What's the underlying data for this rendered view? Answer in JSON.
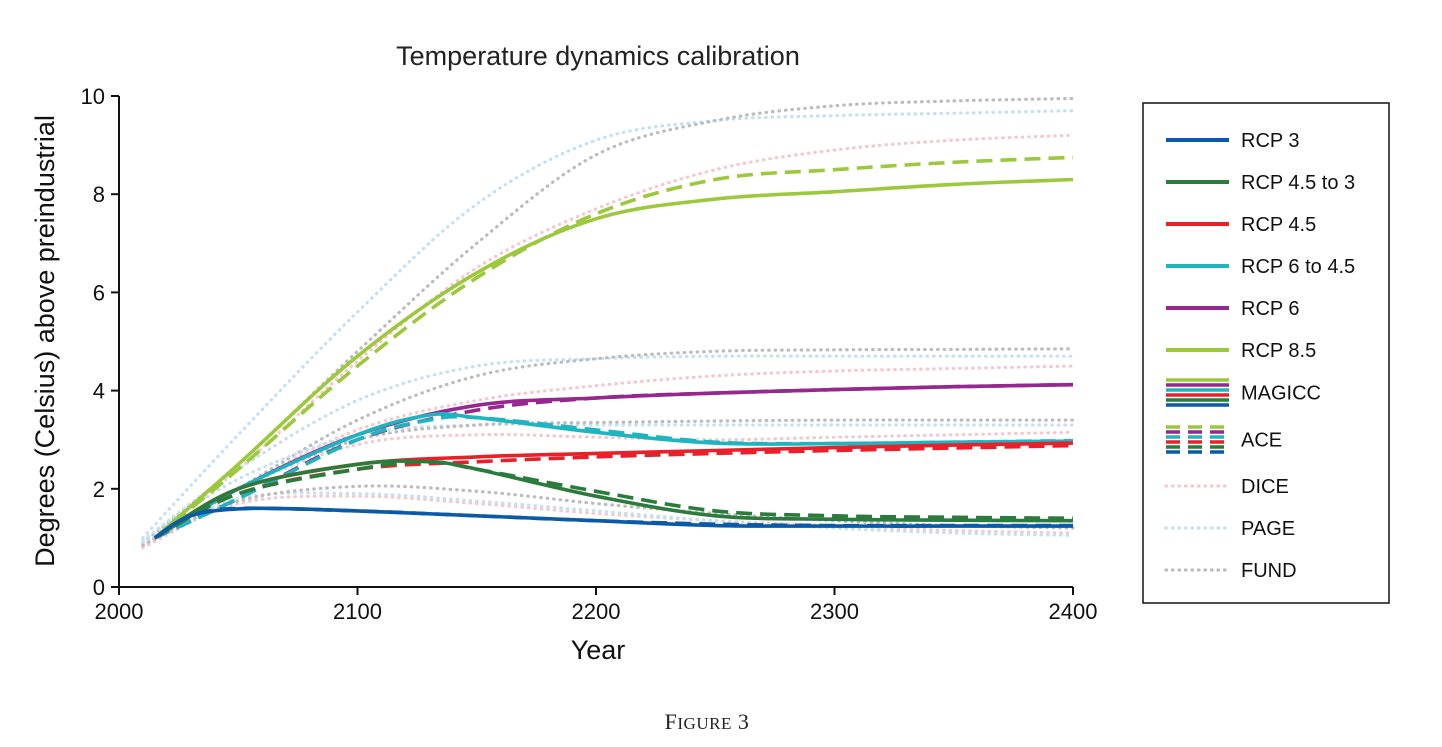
{
  "chart_data": {
    "type": "line",
    "title": "Temperature dynamics calibration",
    "xlabel": "Year",
    "ylabel": "Degrees (Celsius) above preindustrial",
    "xlim": [
      2000,
      2400
    ],
    "ylim": [
      0,
      10
    ],
    "xticks": [
      "2000",
      "2100",
      "2200",
      "2300",
      "2400"
    ],
    "yticks": [
      "0",
      "2",
      "4",
      "6",
      "8",
      "10"
    ],
    "grid": false,
    "legend_position": "right",
    "caption": "Figure 3",
    "colors": {
      "RCP 3": "#0a5aa8",
      "RCP 4.5 to 3": "#2a7b3c",
      "RCP 4.5": "#e8202a",
      "RCP 6 to 4.5": "#1fb5c0",
      "RCP 6": "#96278e",
      "RCP 8.5": "#9cc83c",
      "DICE": "#f5c8d0",
      "PAGE": "#c6e0f2",
      "FUND": "#bcbcbc"
    },
    "legend": [
      {
        "label": "RCP 3",
        "style": "solid"
      },
      {
        "label": "RCP 4.5 to 3",
        "style": "solid"
      },
      {
        "label": "RCP 4.5",
        "style": "solid"
      },
      {
        "label": "RCP 6 to 4.5",
        "style": "solid"
      },
      {
        "label": "RCP 6",
        "style": "solid"
      },
      {
        "label": "RCP 8.5",
        "style": "solid"
      },
      {
        "label": "MAGICC",
        "style": "solid-stack"
      },
      {
        "label": "ACE",
        "style": "dashed-stack"
      },
      {
        "label": "DICE",
        "style": "dotted"
      },
      {
        "label": "PAGE",
        "style": "dotted"
      },
      {
        "label": "FUND",
        "style": "dotted"
      }
    ],
    "series": [
      {
        "scenario": "RCP 8.5",
        "model": "DICE",
        "style": "dotted",
        "x": [
          2010,
          2050,
          2100,
          2150,
          2200,
          2250,
          2300,
          2350,
          2400
        ],
        "y": [
          0.9,
          2.4,
          4.6,
          6.5,
          7.7,
          8.5,
          8.9,
          9.1,
          9.2
        ]
      },
      {
        "scenario": "RCP 8.5",
        "model": "PAGE",
        "style": "dotted",
        "x": [
          2010,
          2050,
          2100,
          2150,
          2200,
          2250,
          2300,
          2350,
          2400
        ],
        "y": [
          1.0,
          3.1,
          5.6,
          7.8,
          9.1,
          9.5,
          9.6,
          9.65,
          9.7
        ]
      },
      {
        "scenario": "RCP 8.5",
        "model": "FUND",
        "style": "dotted",
        "x": [
          2010,
          2050,
          2100,
          2150,
          2200,
          2250,
          2300,
          2350,
          2400
        ],
        "y": [
          0.9,
          2.5,
          4.8,
          7.0,
          8.8,
          9.5,
          9.8,
          9.9,
          9.95
        ]
      },
      {
        "scenario": "RCP 6",
        "model": "DICE",
        "style": "dotted",
        "x": [
          2010,
          2050,
          2100,
          2150,
          2200,
          2250,
          2300,
          2350,
          2400
        ],
        "y": [
          0.85,
          2.0,
          3.2,
          3.8,
          4.1,
          4.3,
          4.4,
          4.45,
          4.5
        ]
      },
      {
        "scenario": "RCP 6",
        "model": "PAGE",
        "style": "dotted",
        "x": [
          2010,
          2050,
          2100,
          2150,
          2200,
          2250,
          2300,
          2350,
          2400
        ],
        "y": [
          0.95,
          2.4,
          3.8,
          4.5,
          4.65,
          4.7,
          4.7,
          4.7,
          4.7
        ]
      },
      {
        "scenario": "RCP 6",
        "model": "FUND",
        "style": "dotted",
        "x": [
          2010,
          2050,
          2100,
          2150,
          2200,
          2250,
          2300,
          2350,
          2400
        ],
        "y": [
          0.85,
          2.0,
          3.4,
          4.3,
          4.65,
          4.8,
          4.83,
          4.84,
          4.85
        ]
      },
      {
        "scenario": "RCP 6 to 4.5",
        "model": "DICE",
        "style": "dotted",
        "x": [
          2010,
          2050,
          2100,
          2150,
          2200,
          2250,
          2300,
          2350,
          2400
        ],
        "y": [
          0.85,
          2.0,
          2.9,
          3.1,
          3.05,
          3.0,
          3.05,
          3.1,
          3.15
        ]
      },
      {
        "scenario": "RCP 6 to 4.5",
        "model": "PAGE",
        "style": "dotted",
        "x": [
          2010,
          2050,
          2100,
          2150,
          2200,
          2250,
          2300,
          2350,
          2400
        ],
        "y": [
          0.95,
          2.2,
          3.1,
          3.3,
          3.3,
          3.3,
          3.3,
          3.3,
          3.3
        ]
      },
      {
        "scenario": "RCP 6 to 4.5",
        "model": "FUND",
        "style": "dotted",
        "x": [
          2010,
          2050,
          2100,
          2150,
          2200,
          2250,
          2300,
          2350,
          2400
        ],
        "y": [
          0.85,
          2.0,
          3.0,
          3.3,
          3.35,
          3.38,
          3.4,
          3.4,
          3.4
        ]
      },
      {
        "scenario": "RCP 3",
        "model": "DICE",
        "style": "dotted",
        "x": [
          2010,
          2050,
          2100,
          2150,
          2200,
          2250,
          2300,
          2350,
          2400
        ],
        "y": [
          0.8,
          1.7,
          1.85,
          1.7,
          1.5,
          1.35,
          1.25,
          1.15,
          1.1
        ]
      },
      {
        "scenario": "RCP 3",
        "model": "PAGE",
        "style": "dotted",
        "x": [
          2010,
          2050,
          2100,
          2150,
          2200,
          2250,
          2300,
          2350,
          2400
        ],
        "y": [
          0.9,
          1.8,
          1.9,
          1.75,
          1.55,
          1.35,
          1.2,
          1.1,
          1.05
        ]
      },
      {
        "scenario": "RCP 3",
        "model": "FUND",
        "style": "dotted",
        "x": [
          2010,
          2050,
          2100,
          2150,
          2200,
          2250,
          2300,
          2350,
          2400
        ],
        "y": [
          0.85,
          1.75,
          2.05,
          1.95,
          1.7,
          1.5,
          1.35,
          1.25,
          1.2
        ]
      },
      {
        "scenario": "RCP 8.5",
        "model": "ACE",
        "style": "dashed",
        "x": [
          2015,
          2050,
          2100,
          2150,
          2200,
          2250,
          2300,
          2350,
          2400
        ],
        "y": [
          1.0,
          2.4,
          4.5,
          6.3,
          7.6,
          8.3,
          8.5,
          8.65,
          8.75
        ]
      },
      {
        "scenario": "RCP 8.5",
        "model": "MAGICC",
        "style": "solid",
        "x": [
          2015,
          2050,
          2100,
          2150,
          2200,
          2250,
          2300,
          2350,
          2400
        ],
        "y": [
          1.0,
          2.5,
          4.7,
          6.4,
          7.5,
          7.9,
          8.05,
          8.2,
          8.3
        ]
      },
      {
        "scenario": "RCP 6",
        "model": "ACE",
        "style": "dashed",
        "x": [
          2015,
          2050,
          2100,
          2150,
          2200,
          2250,
          2300,
          2350,
          2400
        ],
        "y": [
          1.0,
          1.8,
          3.0,
          3.6,
          3.85,
          3.95,
          4.02,
          4.08,
          4.12
        ]
      },
      {
        "scenario": "RCP 6",
        "model": "MAGICC",
        "style": "solid",
        "x": [
          2015,
          2050,
          2100,
          2150,
          2200,
          2250,
          2300,
          2350,
          2400
        ],
        "y": [
          1.0,
          2.0,
          3.1,
          3.7,
          3.85,
          3.95,
          4.02,
          4.08,
          4.12
        ]
      },
      {
        "scenario": "RCP 6 to 4.5",
        "model": "ACE",
        "style": "dashed",
        "x": [
          2015,
          2050,
          2100,
          2130,
          2150,
          2200,
          2250,
          2300,
          2350,
          2400
        ],
        "y": [
          1.0,
          1.8,
          3.0,
          3.4,
          3.45,
          3.2,
          2.95,
          2.92,
          2.95,
          2.98
        ]
      },
      {
        "scenario": "RCP 6 to 4.5",
        "model": "MAGICC",
        "style": "solid",
        "x": [
          2015,
          2050,
          2100,
          2130,
          2150,
          2200,
          2250,
          2300,
          2350,
          2400
        ],
        "y": [
          1.0,
          2.0,
          3.1,
          3.5,
          3.45,
          3.15,
          2.93,
          2.92,
          2.95,
          2.97
        ]
      },
      {
        "scenario": "RCP 4.5",
        "model": "ACE",
        "style": "dashed",
        "x": [
          2015,
          2050,
          2100,
          2150,
          2200,
          2250,
          2300,
          2350,
          2400
        ],
        "y": [
          1.0,
          1.9,
          2.4,
          2.55,
          2.65,
          2.72,
          2.78,
          2.83,
          2.88
        ]
      },
      {
        "scenario": "RCP 4.5",
        "model": "MAGICC",
        "style": "solid",
        "x": [
          2015,
          2050,
          2100,
          2150,
          2200,
          2250,
          2300,
          2350,
          2400
        ],
        "y": [
          1.0,
          2.0,
          2.5,
          2.65,
          2.72,
          2.78,
          2.84,
          2.89,
          2.93
        ]
      },
      {
        "scenario": "RCP 4.5 to 3",
        "model": "ACE",
        "style": "dashed",
        "x": [
          2015,
          2050,
          2100,
          2130,
          2150,
          2200,
          2250,
          2300,
          2350,
          2400
        ],
        "y": [
          1.0,
          1.9,
          2.4,
          2.55,
          2.4,
          1.95,
          1.55,
          1.45,
          1.42,
          1.4
        ]
      },
      {
        "scenario": "RCP 4.5 to 3",
        "model": "MAGICC",
        "style": "solid",
        "x": [
          2015,
          2050,
          2100,
          2130,
          2150,
          2200,
          2250,
          2300,
          2350,
          2400
        ],
        "y": [
          1.0,
          2.0,
          2.5,
          2.55,
          2.4,
          1.85,
          1.45,
          1.38,
          1.36,
          1.35
        ]
      },
      {
        "scenario": "RCP 3",
        "model": "ACE",
        "style": "dashed",
        "x": [
          2015,
          2030,
          2050,
          2100,
          2150,
          2200,
          2250,
          2300,
          2350,
          2400
        ],
        "y": [
          1.0,
          1.45,
          1.6,
          1.55,
          1.45,
          1.35,
          1.28,
          1.25,
          1.25,
          1.25
        ]
      },
      {
        "scenario": "RCP 3",
        "model": "MAGICC",
        "style": "solid",
        "x": [
          2015,
          2030,
          2055,
          2100,
          2150,
          2200,
          2250,
          2300,
          2350,
          2400
        ],
        "y": [
          1.0,
          1.45,
          1.6,
          1.55,
          1.45,
          1.35,
          1.25,
          1.24,
          1.24,
          1.24
        ]
      }
    ]
  }
}
